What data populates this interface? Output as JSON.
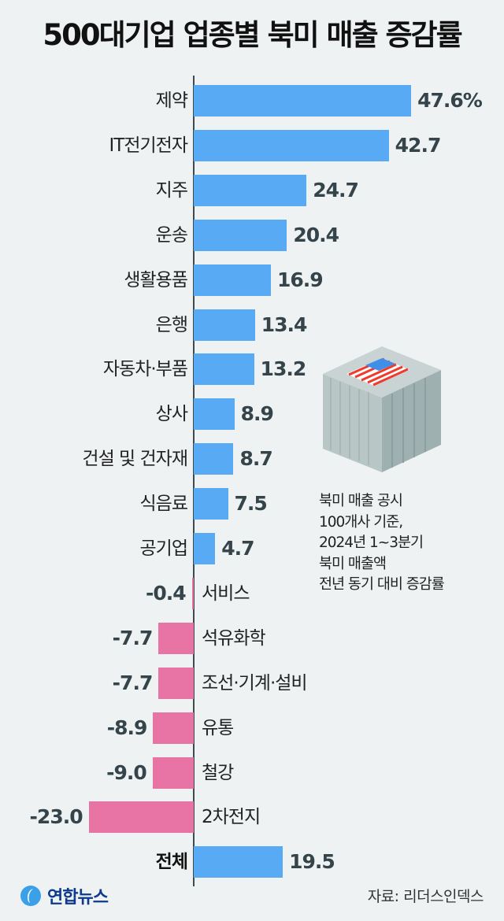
{
  "chart_data": {
    "type": "bar",
    "orientation": "horizontal",
    "title": "500대기업 업종별 북미 매출 증감률",
    "unit": "%",
    "categories": [
      "제약",
      "IT전기전자",
      "지주",
      "운송",
      "생활용품",
      "은행",
      "자동차·부품",
      "상사",
      "건설 및 건자재",
      "식음료",
      "공기업",
      "서비스",
      "석유화학",
      "조선·기계·설비",
      "유통",
      "철강",
      "2차전지",
      "전체"
    ],
    "values": [
      47.6,
      42.7,
      24.7,
      20.4,
      16.9,
      13.4,
      13.2,
      8.9,
      8.7,
      7.5,
      4.7,
      -0.4,
      -7.7,
      -7.7,
      -8.9,
      -9.0,
      -23.0,
      19.5
    ],
    "value_labels": [
      "47.6%",
      "42.7",
      "24.7",
      "20.4",
      "16.9",
      "13.4",
      "13.2",
      "8.9",
      "8.7",
      "7.5",
      "4.7",
      "-0.4",
      "-7.7",
      "-7.7",
      "-8.9",
      "-9.0",
      "-23.0",
      "19.5"
    ],
    "colors": {
      "positive": "#58aaf4",
      "negative": "#e874a6"
    },
    "xlim": [
      -23.0,
      47.6
    ]
  },
  "note": [
    "북미 매출 공시",
    "100개사 기준,",
    "2024년 1~3분기",
    "북미 매출액",
    "전년 동기 대비 증감률"
  ],
  "source": "자료: 리더스인덱스",
  "logo": "연합뉴스"
}
